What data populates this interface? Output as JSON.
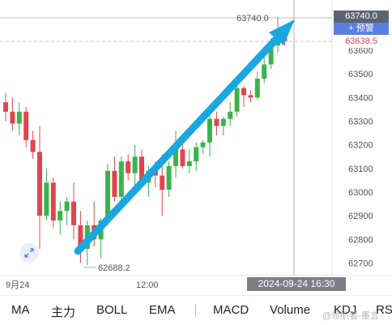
{
  "price_axis": {
    "ticks": [
      "63600",
      "63500",
      "63400",
      "63300",
      "63200",
      "63100",
      "63000",
      "62900",
      "62800",
      "62700"
    ],
    "tick_values": [
      63600,
      63500,
      63400,
      63300,
      63200,
      63100,
      63000,
      62900,
      62800,
      62700
    ]
  },
  "labels": {
    "high": "63740.0",
    "high_box": "63740.0",
    "alert_button": "+ 预警",
    "last_price": "63638.5",
    "low": "62688.2",
    "date_tick": "9月24",
    "time_tick": "12:00",
    "crosshair_time": "2024-09-24 16:30"
  },
  "toolbar": {
    "items": [
      "MA",
      "主力",
      "BOLL",
      "EMA",
      "MACD",
      "Volume",
      "KDJ",
      "RSI"
    ]
  },
  "watermark": "@领航者-墨言",
  "colors": {
    "up": "#3bb34a",
    "down": "#e0454f",
    "arrow": "#1aa7e0"
  },
  "chart_data": {
    "type": "candlestick",
    "candles": [
      [
        63380,
        63420,
        63300,
        63340
      ],
      [
        63340,
        63400,
        63260,
        63290
      ],
      [
        63290,
        63380,
        63240,
        63340
      ],
      [
        63340,
        63360,
        63190,
        63220
      ],
      [
        63220,
        63260,
        63140,
        63170
      ],
      [
        63170,
        63280,
        62760,
        62900
      ],
      [
        62900,
        63100,
        62880,
        63040
      ],
      [
        63040,
        63060,
        62850,
        62880
      ],
      [
        62880,
        62960,
        62820,
        62920
      ],
      [
        62920,
        62980,
        62860,
        62960
      ],
      [
        62960,
        63040,
        62800,
        62860
      ],
      [
        62860,
        62920,
        62700,
        62760
      ],
      [
        62760,
        62880,
        62690,
        62860
      ],
      [
        62860,
        62960,
        62770,
        62800
      ],
      [
        62800,
        62890,
        62720,
        62880
      ],
      [
        62880,
        63120,
        62860,
        63090
      ],
      [
        63090,
        63150,
        62960,
        62980
      ],
      [
        62980,
        63150,
        62930,
        63130
      ],
      [
        63130,
        63160,
        63050,
        63080
      ],
      [
        63080,
        63200,
        63000,
        63150
      ],
      [
        63150,
        63180,
        63020,
        63040
      ],
      [
        63040,
        63110,
        62980,
        63090
      ],
      [
        63090,
        63130,
        63020,
        63070
      ],
      [
        63070,
        63160,
        62900,
        63010
      ],
      [
        63010,
        63130,
        62980,
        63110
      ],
      [
        63110,
        63260,
        63060,
        63180
      ],
      [
        63180,
        63230,
        63100,
        63110
      ],
      [
        63110,
        63180,
        63080,
        63130
      ],
      [
        63130,
        63210,
        63090,
        63190
      ],
      [
        63190,
        63220,
        63160,
        63210
      ],
      [
        63210,
        63370,
        63150,
        63310
      ],
      [
        63310,
        63340,
        63240,
        63280
      ],
      [
        63280,
        63320,
        63240,
        63310
      ],
      [
        63310,
        63380,
        63280,
        63340
      ],
      [
        63340,
        63460,
        63320,
        63440
      ],
      [
        63440,
        63450,
        63360,
        63410
      ],
      [
        63410,
        63430,
        63380,
        63400
      ],
      [
        63400,
        63510,
        63390,
        63480
      ],
      [
        63480,
        63570,
        63460,
        63540
      ],
      [
        63540,
        63650,
        63520,
        63620
      ],
      [
        63620,
        63740,
        63590,
        63660
      ],
      [
        63660,
        63680,
        63620,
        63638.5
      ]
    ]
  }
}
